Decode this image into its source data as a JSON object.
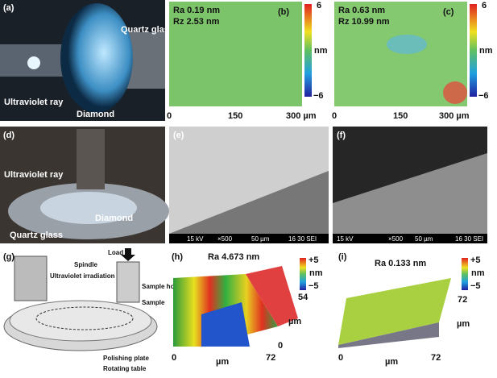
{
  "panels": {
    "a": {
      "label": "(a)",
      "texts": [
        "Quartz glass",
        "Ultraviolet ray",
        "Diamond"
      ]
    },
    "b": {
      "label": "(b)",
      "stats": [
        "Ra 0.19 nm",
        "Rz 2.53 nm"
      ],
      "colorbar": [
        "6",
        "nm",
        "−6"
      ],
      "axis": [
        "0",
        "150",
        "300 µm"
      ]
    },
    "c": {
      "label": "(c)",
      "stats": [
        "Ra 0.63 nm",
        "Rz 10.99 nm"
      ],
      "colorbar": [
        "6",
        "nm",
        "−6"
      ],
      "axis": [
        "0",
        "150",
        "300 µm"
      ]
    },
    "d": {
      "label": "(d)",
      "texts": [
        "Ultraviolet ray",
        "Diamond",
        "Quartz glass"
      ]
    },
    "e": {
      "label": "(e)",
      "footer": [
        "15 kV",
        "×500",
        "50 µm",
        "16 30 SEI"
      ]
    },
    "f": {
      "label": "(f)",
      "footer": [
        "15 kV",
        "×500",
        "50 µm",
        "16 30 SEI"
      ]
    },
    "g": {
      "label": "(g)",
      "texts": [
        "Load",
        "Spindle",
        "Ultraviolet irradiation",
        "Sample holder",
        "Sample",
        "Polishing plate",
        "Rotating table"
      ]
    },
    "h": {
      "label": "(h)",
      "stat": "Ra 4.673 nm",
      "colorbar": [
        "+5",
        "nm",
        "−5"
      ],
      "axis": [
        "54",
        "µm",
        "0",
        "72",
        "0",
        "µm",
        "72"
      ]
    },
    "i": {
      "label": "(i)",
      "stat": "Ra 0.133 nm",
      "colorbar": [
        "+5",
        "nm",
        "−5"
      ],
      "axis": [
        "72",
        "µm",
        "0",
        "µm",
        "72"
      ]
    }
  }
}
